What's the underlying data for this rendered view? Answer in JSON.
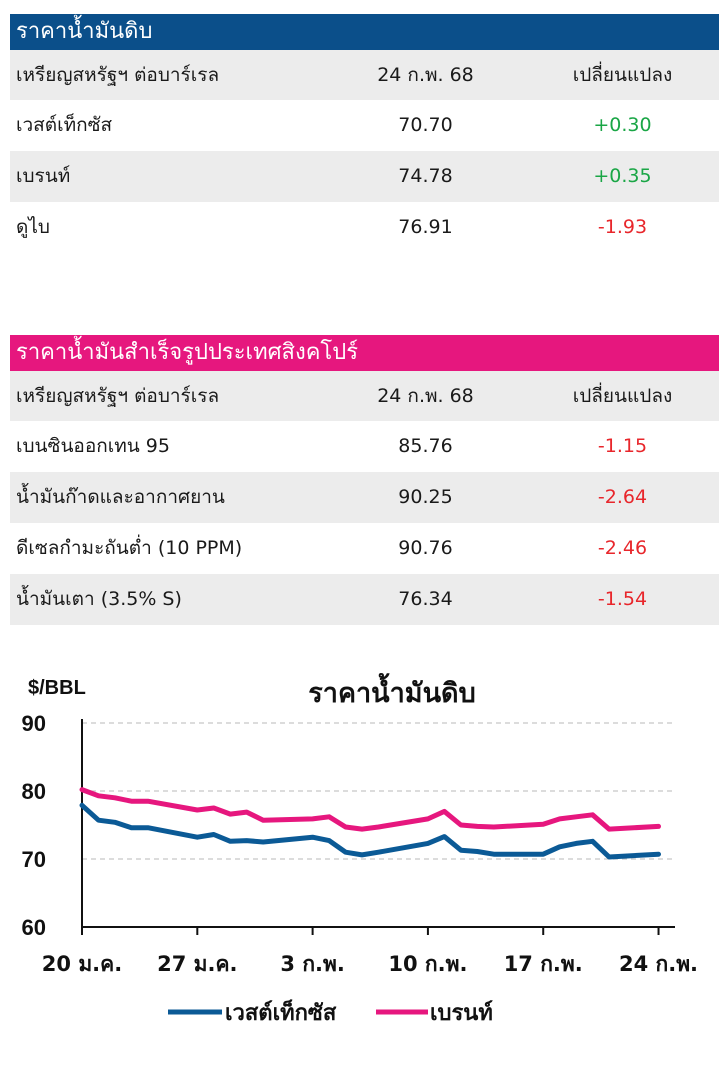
{
  "crude": {
    "title": "ราคาน้ำมันดิบ",
    "header_color": "#0b4f8a",
    "columns": [
      "เหรียญสหรัฐฯ ต่อบาร์เรล",
      "24 ก.พ. 68",
      "เปลี่ยนแปลง"
    ],
    "rows": [
      {
        "name": "เวสต์เท็กซัส",
        "price": "70.70",
        "change": "+0.30"
      },
      {
        "name": "เบรนท์",
        "price": "74.78",
        "change": "+0.35"
      },
      {
        "name": "ดูไบ",
        "price": "76.91",
        "change": "-1.93"
      }
    ]
  },
  "products": {
    "title": "ราคาน้ำมันสำเร็จรูปประเทศสิงคโปร์",
    "header_color": "#e6177e",
    "columns": [
      "เหรียญสหรัฐฯ ต่อบาร์เรล",
      "24 ก.พ. 68",
      "เปลี่ยนแปลง"
    ],
    "rows": [
      {
        "name": "เบนซินออกเทน 95",
        "price": "85.76",
        "change": "-1.15"
      },
      {
        "name": "น้ำมันก๊าดและอากาศยาน",
        "price": "90.25",
        "change": "-2.64"
      },
      {
        "name": "ดีเซลกำมะถันต่ำ (10 PPM)",
        "price": "90.76",
        "change": "-2.46"
      },
      {
        "name": "น้ำมันเตา (3.5% S)",
        "price": "76.34",
        "change": "-1.54"
      }
    ]
  },
  "chart_data": {
    "type": "line",
    "title": "ราคาน้ำมันดิบ",
    "ylabel": "$/BBL",
    "ylim": [
      60,
      90
    ],
    "yticks": [
      60,
      70,
      80,
      90
    ],
    "xlim": [
      0,
      36
    ],
    "xtick_positions": [
      0,
      7,
      14,
      21,
      28,
      35
    ],
    "xtick_labels": [
      "20 ม.ค.",
      "27 ม.ค.",
      "3 ก.พ.",
      "10 ก.พ.",
      "17 ก.พ.",
      "24 ก.พ."
    ],
    "grid": true,
    "legend_position": "bottom",
    "x": [
      0,
      1,
      2,
      3,
      4,
      7,
      8,
      9,
      10,
      11,
      14,
      15,
      16,
      17,
      18,
      21,
      22,
      23,
      24,
      25,
      28,
      29,
      30,
      31,
      32,
      35
    ],
    "series": [
      {
        "name": "เวสต์เท็กซัส",
        "color": "#0b5a96",
        "values": [
          77.9,
          75.7,
          75.4,
          74.6,
          74.6,
          73.2,
          73.6,
          72.6,
          72.7,
          72.5,
          73.2,
          72.7,
          71.0,
          70.6,
          71.0,
          72.3,
          73.3,
          71.3,
          71.1,
          70.7,
          70.7,
          71.8,
          72.3,
          72.6,
          70.3,
          70.7
        ]
      },
      {
        "name": "เบรนท์",
        "color": "#e6177e",
        "values": [
          80.2,
          79.3,
          79.0,
          78.5,
          78.5,
          77.2,
          77.5,
          76.6,
          76.9,
          75.7,
          75.9,
          76.2,
          74.7,
          74.4,
          74.7,
          75.9,
          77.0,
          75.0,
          74.8,
          74.7,
          75.1,
          75.9,
          76.2,
          76.5,
          74.4,
          74.8
        ]
      }
    ]
  }
}
